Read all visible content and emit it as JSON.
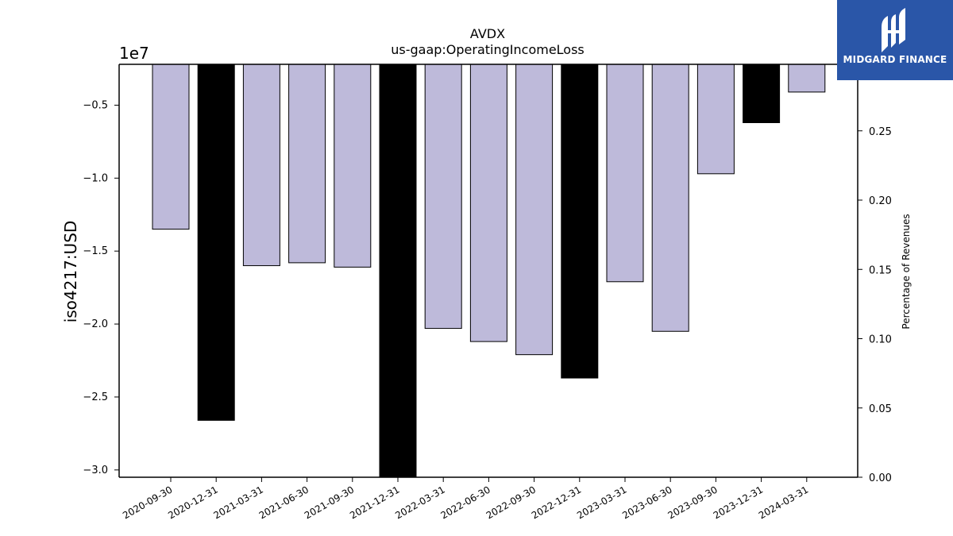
{
  "chart_data": {
    "type": "bar",
    "title": "AVDX",
    "subtitle": "us-gaap:OperatingIncomeLoss",
    "ylabel": "iso4217:USD",
    "y2label": "Percentage of Revenues",
    "offset_label": "1e7",
    "categories": [
      "2020-09-30",
      "2020-12-31",
      "2021-03-31",
      "2021-06-30",
      "2021-09-30",
      "2021-12-31",
      "2022-03-31",
      "2022-06-30",
      "2022-09-30",
      "2022-12-31",
      "2023-03-31",
      "2023-06-30",
      "2023-09-30",
      "2023-12-31",
      "2024-03-31"
    ],
    "values": [
      -13500000,
      -26600000,
      -16000000,
      -15800000,
      -16100000,
      -30500000,
      -20300000,
      -21200000,
      -22100000,
      -23700000,
      -17100000,
      -20500000,
      -9700000,
      -6200000,
      -4100000
    ],
    "period_type": [
      "quarter",
      "annual",
      "quarter",
      "quarter",
      "quarter",
      "annual",
      "quarter",
      "quarter",
      "quarter",
      "annual",
      "quarter",
      "quarter",
      "quarter",
      "annual",
      "quarter"
    ],
    "colors": {
      "quarter": "#bebada",
      "annual": "#000000"
    },
    "ylim": [
      -30500000,
      -2200000
    ],
    "yticks": [
      -0.5,
      -1.0,
      -1.5,
      -2.0,
      -2.5,
      -3.0
    ],
    "ytick_labels": [
      "−0.5",
      "−1.0",
      "−1.5",
      "−2.0",
      "−2.5",
      "−3.0"
    ],
    "y2lim": [
      0,
      0.298
    ],
    "y2ticks": [
      0.25,
      0.2,
      0.15,
      0.1,
      0.05,
      0.0
    ],
    "y2tick_labels": [
      "0.25",
      "0.20",
      "0.15",
      "0.10",
      "0.05",
      "0.00"
    ],
    "grid": false,
    "legend": "none"
  },
  "logo": {
    "text": "MIDGARD FINANCE",
    "background": "#2a56a8"
  }
}
